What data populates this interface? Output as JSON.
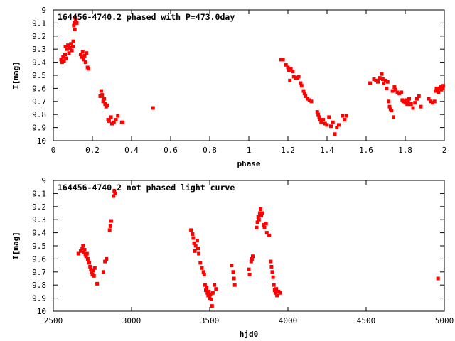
{
  "marker_color": "#ff0000",
  "chart_data": [
    {
      "type": "scatter",
      "title": "164456-4740.2 phased with P=473.0day",
      "xlabel": "phase",
      "ylabel": "I[mag]",
      "xlim": [
        0,
        2
      ],
      "ylim": [
        9,
        10
      ],
      "y_inverted": true,
      "x_ticks": [
        0,
        0.2,
        0.4,
        0.6,
        0.8,
        1,
        1.2,
        1.4,
        1.6,
        1.8,
        2
      ],
      "x_tick_labels": [
        "0",
        "0.2",
        "0.4",
        "0.6",
        "0.8",
        "1",
        "1.2",
        "1.4",
        "1.6",
        "1.8",
        "2"
      ],
      "y_ticks": [
        9,
        9.1,
        9.2,
        9.3,
        9.4,
        9.5,
        9.6,
        9.7,
        9.8,
        9.9,
        10
      ],
      "y_tick_labels": [
        "9",
        "9.1",
        "9.2",
        "9.3",
        "9.4",
        "9.5",
        "9.6",
        "9.7",
        "9.8",
        "9.9",
        "10"
      ],
      "grid": false,
      "points": [
        [
          0.04,
          9.38
        ],
        [
          0.045,
          9.4
        ],
        [
          0.05,
          9.36
        ],
        [
          0.055,
          9.39
        ],
        [
          0.06,
          9.34
        ],
        [
          0.062,
          9.28
        ],
        [
          0.065,
          9.37
        ],
        [
          0.07,
          9.3
        ],
        [
          0.075,
          9.27
        ],
        [
          0.08,
          9.33
        ],
        [
          0.085,
          9.29
        ],
        [
          0.09,
          9.26
        ],
        [
          0.095,
          9.31
        ],
        [
          0.1,
          9.28
        ],
        [
          0.102,
          9.24
        ],
        [
          0.105,
          9.12
        ],
        [
          0.108,
          9.1
        ],
        [
          0.11,
          9.15
        ],
        [
          0.112,
          9.06
        ],
        [
          0.115,
          9.08
        ],
        [
          0.12,
          9.1
        ],
        [
          0.14,
          9.34
        ],
        [
          0.145,
          9.36
        ],
        [
          0.15,
          9.32
        ],
        [
          0.155,
          9.38
        ],
        [
          0.16,
          9.35
        ],
        [
          0.165,
          9.4
        ],
        [
          0.17,
          9.33
        ],
        [
          0.175,
          9.44
        ],
        [
          0.18,
          9.45
        ],
        [
          0.24,
          9.66
        ],
        [
          0.245,
          9.62
        ],
        [
          0.25,
          9.65
        ],
        [
          0.255,
          9.7
        ],
        [
          0.26,
          9.68
        ],
        [
          0.265,
          9.72
        ],
        [
          0.27,
          9.74
        ],
        [
          0.275,
          9.73
        ],
        [
          0.28,
          9.84
        ],
        [
          0.285,
          9.85
        ],
        [
          0.295,
          9.82
        ],
        [
          0.3,
          9.87
        ],
        [
          0.31,
          9.86
        ],
        [
          0.32,
          9.84
        ],
        [
          0.33,
          9.81
        ],
        [
          0.35,
          9.86
        ],
        [
          0.355,
          9.86
        ],
        [
          0.51,
          9.75
        ],
        [
          1.165,
          9.38
        ],
        [
          1.175,
          9.38
        ],
        [
          1.19,
          9.42
        ],
        [
          1.2,
          9.44
        ],
        [
          1.205,
          9.46
        ],
        [
          1.21,
          9.54
        ],
        [
          1.215,
          9.45
        ],
        [
          1.225,
          9.47
        ],
        [
          1.23,
          9.51
        ],
        [
          1.24,
          9.52
        ],
        [
          1.25,
          9.52
        ],
        [
          1.255,
          9.51
        ],
        [
          1.265,
          9.56
        ],
        [
          1.27,
          9.58
        ],
        [
          1.28,
          9.62
        ],
        [
          1.285,
          9.64
        ],
        [
          1.29,
          9.66
        ],
        [
          1.3,
          9.68
        ],
        [
          1.31,
          9.69
        ],
        [
          1.32,
          9.7
        ],
        [
          1.35,
          9.78
        ],
        [
          1.355,
          9.8
        ],
        [
          1.36,
          9.82
        ],
        [
          1.365,
          9.84
        ],
        [
          1.37,
          9.86
        ],
        [
          1.38,
          9.84
        ],
        [
          1.39,
          9.87
        ],
        [
          1.4,
          9.88
        ],
        [
          1.41,
          9.82
        ],
        [
          1.42,
          9.89
        ],
        [
          1.43,
          9.86
        ],
        [
          1.44,
          9.95
        ],
        [
          1.45,
          9.9
        ],
        [
          1.46,
          9.88
        ],
        [
          1.48,
          9.81
        ],
        [
          1.49,
          9.84
        ],
        [
          1.5,
          9.81
        ],
        [
          1.62,
          9.56
        ],
        [
          1.64,
          9.53
        ],
        [
          1.65,
          9.54
        ],
        [
          1.66,
          9.55
        ],
        [
          1.67,
          9.52
        ],
        [
          1.68,
          9.49
        ],
        [
          1.685,
          9.53
        ],
        [
          1.69,
          9.56
        ],
        [
          1.7,
          9.54
        ],
        [
          1.705,
          9.6
        ],
        [
          1.71,
          9.55
        ],
        [
          1.715,
          9.7
        ],
        [
          1.72,
          9.74
        ],
        [
          1.725,
          9.76
        ],
        [
          1.73,
          9.77
        ],
        [
          1.735,
          9.62
        ],
        [
          1.74,
          9.82
        ],
        [
          1.745,
          9.59
        ],
        [
          1.75,
          9.61
        ],
        [
          1.76,
          9.63
        ],
        [
          1.77,
          9.64
        ],
        [
          1.78,
          9.63
        ],
        [
          1.785,
          9.69
        ],
        [
          1.79,
          9.7
        ],
        [
          1.8,
          9.71
        ],
        [
          1.805,
          9.69
        ],
        [
          1.81,
          9.72
        ],
        [
          1.815,
          9.7
        ],
        [
          1.82,
          9.68
        ],
        [
          1.83,
          9.72
        ],
        [
          1.84,
          9.75
        ],
        [
          1.85,
          9.71
        ],
        [
          1.86,
          9.68
        ],
        [
          1.87,
          9.66
        ],
        [
          1.88,
          9.74
        ],
        [
          1.92,
          9.68
        ],
        [
          1.93,
          9.7
        ],
        [
          1.94,
          9.71
        ],
        [
          1.95,
          9.7
        ],
        [
          1.955,
          9.62
        ],
        [
          1.96,
          9.6
        ],
        [
          1.965,
          9.61
        ],
        [
          1.97,
          9.63
        ],
        [
          1.975,
          9.6
        ],
        [
          1.98,
          9.59
        ],
        [
          1.985,
          9.61
        ],
        [
          1.99,
          9.6
        ],
        [
          1.995,
          9.58
        ]
      ]
    },
    {
      "type": "scatter",
      "title": "164456-4740.2 not phased light curve",
      "xlabel": "hjd0",
      "ylabel": "I[mag]",
      "xlim": [
        2500,
        5000
      ],
      "ylim": [
        9,
        10
      ],
      "y_inverted": true,
      "x_ticks": [
        2500,
        3000,
        3500,
        4000,
        4500,
        5000
      ],
      "x_tick_labels": [
        "2500",
        "3000",
        "3500",
        "4000",
        "4500",
        "5000"
      ],
      "y_ticks": [
        9,
        9.1,
        9.2,
        9.3,
        9.4,
        9.5,
        9.6,
        9.7,
        9.8,
        9.9,
        10
      ],
      "y_tick_labels": [
        "9",
        "9.1",
        "9.2",
        "9.3",
        "9.4",
        "9.5",
        "9.6",
        "9.7",
        "9.8",
        "9.9",
        "10"
      ],
      "grid": false,
      "points": [
        [
          2660,
          9.56
        ],
        [
          2675,
          9.54
        ],
        [
          2685,
          9.52
        ],
        [
          2690,
          9.5
        ],
        [
          2695,
          9.55
        ],
        [
          2700,
          9.53
        ],
        [
          2705,
          9.57
        ],
        [
          2710,
          9.58
        ],
        [
          2715,
          9.56
        ],
        [
          2720,
          9.6
        ],
        [
          2725,
          9.62
        ],
        [
          2730,
          9.63
        ],
        [
          2735,
          9.66
        ],
        [
          2740,
          9.68
        ],
        [
          2745,
          9.7
        ],
        [
          2750,
          9.72
        ],
        [
          2755,
          9.69
        ],
        [
          2760,
          9.73
        ],
        [
          2765,
          9.67
        ],
        [
          2780,
          9.79
        ],
        [
          2820,
          9.7
        ],
        [
          2830,
          9.62
        ],
        [
          2840,
          9.6
        ],
        [
          2860,
          9.38
        ],
        [
          2865,
          9.35
        ],
        [
          2870,
          9.31
        ],
        [
          2885,
          9.12
        ],
        [
          2890,
          9.08
        ],
        [
          2895,
          9.1
        ],
        [
          3380,
          9.38
        ],
        [
          3390,
          9.41
        ],
        [
          3395,
          9.44
        ],
        [
          3400,
          9.48
        ],
        [
          3405,
          9.54
        ],
        [
          3410,
          9.5
        ],
        [
          3420,
          9.46
        ],
        [
          3425,
          9.52
        ],
        [
          3430,
          9.56
        ],
        [
          3440,
          9.63
        ],
        [
          3450,
          9.67
        ],
        [
          3460,
          9.7
        ],
        [
          3465,
          9.72
        ],
        [
          3470,
          9.8
        ],
        [
          3475,
          9.84
        ],
        [
          3480,
          9.82
        ],
        [
          3485,
          9.86
        ],
        [
          3490,
          9.88
        ],
        [
          3495,
          9.85
        ],
        [
          3500,
          9.9
        ],
        [
          3505,
          9.87
        ],
        [
          3510,
          9.91
        ],
        [
          3515,
          9.96
        ],
        [
          3520,
          9.86
        ],
        [
          3530,
          9.8
        ],
        [
          3540,
          9.83
        ],
        [
          3640,
          9.65
        ],
        [
          3650,
          9.7
        ],
        [
          3655,
          9.75
        ],
        [
          3660,
          9.8
        ],
        [
          3750,
          9.68
        ],
        [
          3755,
          9.72
        ],
        [
          3765,
          9.62
        ],
        [
          3770,
          9.6
        ],
        [
          3775,
          9.58
        ],
        [
          3800,
          9.36
        ],
        [
          3805,
          9.32
        ],
        [
          3810,
          9.28
        ],
        [
          3815,
          9.3
        ],
        [
          3820,
          9.25
        ],
        [
          3825,
          9.22
        ],
        [
          3830,
          9.27
        ],
        [
          3835,
          9.25
        ],
        [
          3845,
          9.34
        ],
        [
          3850,
          9.36
        ],
        [
          3860,
          9.33
        ],
        [
          3865,
          9.4
        ],
        [
          3880,
          9.42
        ],
        [
          3890,
          9.62
        ],
        [
          3895,
          9.66
        ],
        [
          3900,
          9.7
        ],
        [
          3905,
          9.74
        ],
        [
          3910,
          9.8
        ],
        [
          3915,
          9.84
        ],
        [
          3920,
          9.86
        ],
        [
          3925,
          9.83
        ],
        [
          3930,
          9.88
        ],
        [
          3940,
          9.85
        ],
        [
          3950,
          9.86
        ],
        [
          4960,
          9.75
        ]
      ]
    }
  ]
}
